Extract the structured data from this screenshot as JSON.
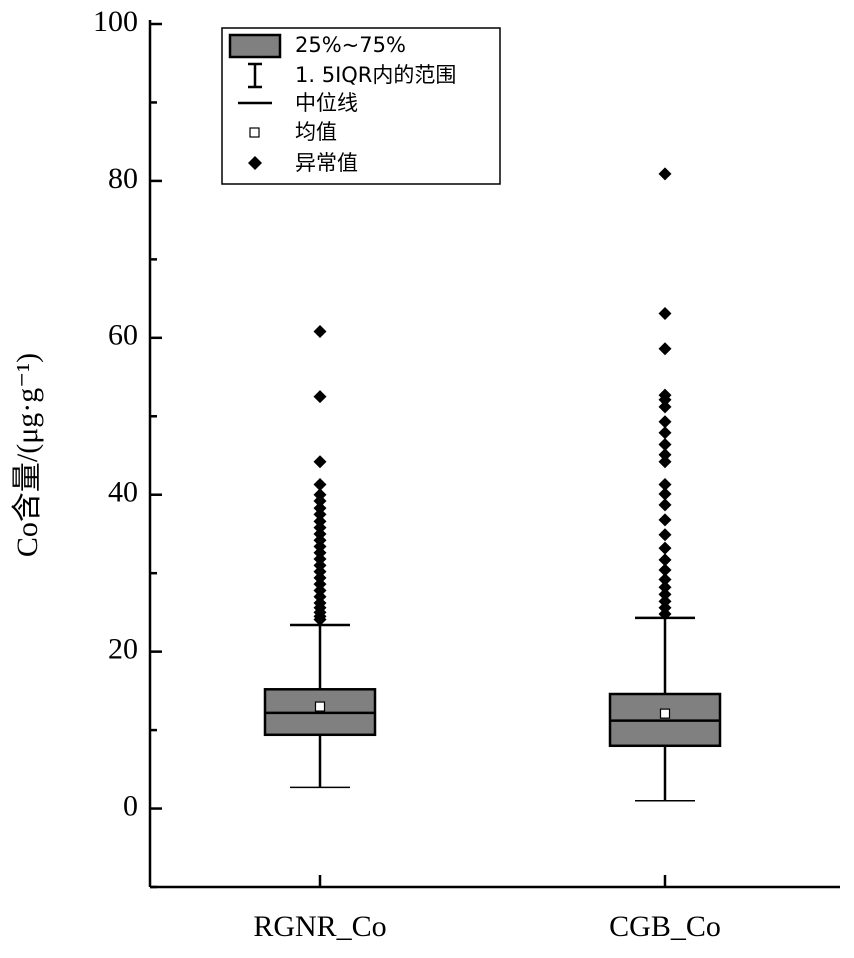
{
  "chart_data": {
    "type": "box",
    "y_label": "Co含量/(μg·g⁻¹)",
    "categories": [
      "RGNR_Co",
      "CGB_Co"
    ],
    "legend": [
      "25%~75%",
      "1. 5IQR内的范围",
      "中位线",
      "均值",
      "异常值"
    ],
    "color": "#808080",
    "ylim": [
      -10,
      100
    ],
    "yticks": [
      0,
      20,
      40,
      60,
      80,
      100
    ],
    "yminorticks": [
      -10,
      10,
      30,
      50,
      70,
      90
    ],
    "boxes": [
      {
        "whisker_low": 2.7,
        "q1": 9.4,
        "median": 12.2,
        "q3": 15.2,
        "mean": 13.0,
        "whisker_high": 23.4,
        "outliers": [
          60.8,
          52.5,
          44.2,
          41.3,
          40.0,
          39.2,
          38.3,
          37.5,
          36.6,
          35.8,
          35.0,
          34.2,
          33.4,
          32.6,
          31.8,
          31.0,
          30.2,
          29.4,
          28.6,
          27.8,
          27.0,
          26.2,
          25.6,
          25.0,
          24.5,
          24.1
        ]
      },
      {
        "whisker_low": 1.0,
        "q1": 8.0,
        "median": 11.2,
        "q3": 14.6,
        "mean": 12.1,
        "whisker_high": 24.3,
        "outliers": [
          80.9,
          63.1,
          58.6,
          52.7,
          52.1,
          51.2,
          49.3,
          47.9,
          46.4,
          45.1,
          44.2,
          41.3,
          40.1,
          38.7,
          36.8,
          34.9,
          33.2,
          31.7,
          30.4,
          29.2,
          28.2,
          27.3,
          26.4,
          25.6,
          24.8
        ]
      }
    ]
  }
}
